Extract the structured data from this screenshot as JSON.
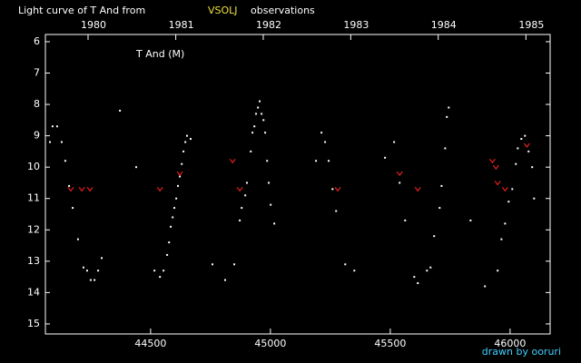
{
  "chart_data": {
    "type": "scatter",
    "title": "Light curve of T And from",
    "title_source": "VSOLJ",
    "title_suffix": "observations",
    "annotation": "T And (M)",
    "credit": "drawn by ooruri",
    "xlim": [
      44061,
      46167
    ],
    "ylim": [
      15.32,
      5.77
    ],
    "xticks": [
      44500,
      45000,
      45500,
      46000
    ],
    "yticks": [
      6,
      7,
      8,
      9,
      10,
      11,
      12,
      13,
      14,
      15
    ],
    "x2ticks": [
      {
        "value": 44239,
        "label": "1980"
      },
      {
        "value": 44605,
        "label": "1981"
      },
      {
        "value": 44970,
        "label": "1982"
      },
      {
        "value": 45335,
        "label": "1983"
      },
      {
        "value": 45700,
        "label": "1984"
      },
      {
        "value": 46066,
        "label": "1985"
      }
    ],
    "series": [
      {
        "color": "#ffffff",
        "marker": "dot",
        "x": [
          44080,
          44091,
          44110,
          44129,
          44144,
          44160,
          44175,
          44197,
          44220,
          44235,
          44250,
          44266,
          44281,
          44296,
          44372,
          44440,
          44516,
          44539,
          44554,
          44569,
          44577,
          44584,
          44592,
          44599,
          44607,
          44614,
          44622,
          44630,
          44637,
          44645,
          44652,
          44667,
          44758,
          44811,
          44849,
          44872,
          44880,
          44895,
          44902,
          44918,
          44925,
          44933,
          44940,
          44948,
          44955,
          44963,
          44971,
          44978,
          44986,
          44993,
          45001,
          45016,
          45190,
          45213,
          45228,
          45243,
          45259,
          45274,
          45312,
          45350,
          45478,
          45516,
          45539,
          45562,
          45600,
          45615,
          45653,
          45668,
          45683,
          45706,
          45714,
          45729,
          45736,
          45744,
          45835,
          45895,
          45948,
          45964,
          45979,
          45994,
          46009,
          46024,
          46032,
          46047,
          46062,
          46077,
          46092,
          46100
        ],
        "values": [
          9.2,
          8.7,
          8.7,
          9.2,
          9.8,
          10.6,
          11.3,
          12.3,
          13.2,
          13.3,
          13.6,
          13.6,
          13.3,
          12.9,
          8.2,
          10.0,
          13.3,
          13.5,
          13.3,
          12.8,
          12.4,
          11.9,
          11.6,
          11.3,
          11.0,
          10.6,
          10.3,
          9.9,
          9.5,
          9.2,
          9.0,
          9.1,
          13.1,
          13.6,
          13.1,
          11.7,
          11.3,
          10.9,
          10.5,
          9.5,
          8.9,
          8.7,
          8.3,
          8.1,
          7.9,
          8.3,
          8.5,
          8.9,
          9.8,
          10.5,
          11.2,
          11.8,
          9.8,
          8.9,
          9.2,
          9.8,
          10.7,
          11.4,
          13.1,
          13.3,
          9.7,
          9.2,
          10.5,
          11.7,
          13.5,
          13.7,
          13.3,
          13.2,
          12.2,
          11.3,
          10.6,
          9.4,
          8.4,
          8.1,
          11.7,
          13.8,
          13.3,
          12.3,
          11.8,
          11.1,
          10.7,
          9.9,
          9.4,
          9.1,
          9.0,
          9.5,
          10.0,
          11.0
        ]
      },
      {
        "color": "#e02020",
        "marker": "v",
        "x": [
          44167,
          44213,
          44247,
          44539,
          44622,
          44842,
          44872,
          45281,
          45539,
          45615,
          45926,
          45941,
          45948,
          45979,
          46070
        ],
        "values": [
          10.7,
          10.7,
          10.7,
          10.7,
          10.2,
          9.8,
          10.7,
          10.7,
          10.2,
          10.7,
          9.8,
          10.0,
          10.5,
          10.7,
          9.3
        ]
      }
    ]
  }
}
